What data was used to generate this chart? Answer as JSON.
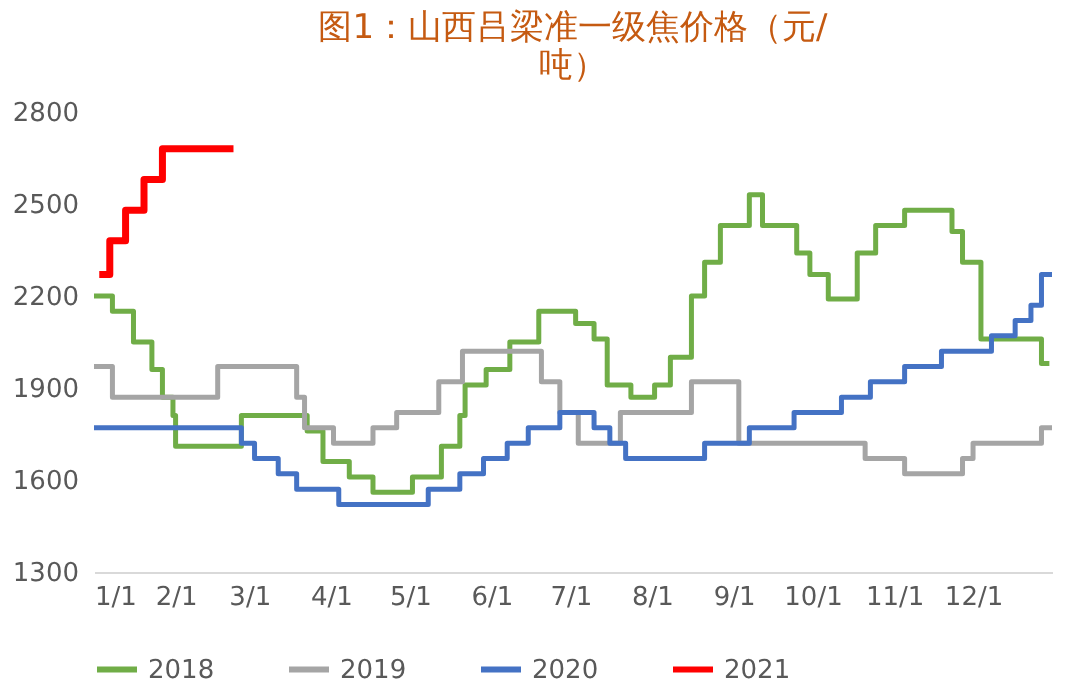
{
  "chart_data": {
    "type": "step",
    "title": "图1：山西吕梁准一级焦价格（元/吨）",
    "xlim": [
      "--01-01",
      "--12-31"
    ],
    "xticks": [
      {
        "value": "--01-01",
        "label": "1/1"
      },
      {
        "value": "--02-01",
        "label": "2/1"
      },
      {
        "value": "--03-01",
        "label": "3/1"
      },
      {
        "value": "--04-01",
        "label": "4/1"
      },
      {
        "value": "--05-01",
        "label": "5/1"
      },
      {
        "value": "--06-01",
        "label": "6/1"
      },
      {
        "value": "--07-01",
        "label": "7/1"
      },
      {
        "value": "--08-01",
        "label": "8/1"
      },
      {
        "value": "--09-01",
        "label": "9/1"
      },
      {
        "value": "--10-01",
        "label": "10/1"
      },
      {
        "value": "--11-01",
        "label": "11/1"
      },
      {
        "value": "--12-01",
        "label": "12/1"
      }
    ],
    "ylim": [
      1300,
      2800
    ],
    "yticks": [
      1300,
      1600,
      1900,
      2200,
      2500,
      2800
    ],
    "grid": false,
    "legend": "bottom",
    "series": [
      {
        "name": "2018",
        "color": "#70ad47",
        "x": [
          "--01-01",
          "--01-08",
          "--01-16",
          "--01-23",
          "--01-27",
          "--01-31",
          "--02-01",
          "--02-26",
          "--03-23",
          "--03-29",
          "--04-08",
          "--04-17",
          "--05-02",
          "--05-13",
          "--05-20",
          "--05-22",
          "--05-30",
          "--06-08",
          "--06-19",
          "--07-03",
          "--07-10",
          "--07-15",
          "--07-24",
          "--08-02",
          "--08-08",
          "--08-16",
          "--08-21",
          "--08-27",
          "--09-07",
          "--09-12",
          "--09-25",
          "--09-30",
          "--10-07",
          "--10-18",
          "--10-25",
          "--11-05",
          "--11-23",
          "--11-27",
          "--12-04",
          "--12-27",
          "--12-30"
        ],
        "values": [
          2200,
          2150,
          2050,
          1960,
          1870,
          1810,
          1710,
          1810,
          1760,
          1660,
          1610,
          1560,
          1610,
          1710,
          1810,
          1910,
          1960,
          2050,
          2150,
          2110,
          2060,
          1910,
          1870,
          1910,
          2000,
          2200,
          2310,
          2430,
          2530,
          2430,
          2340,
          2270,
          2190,
          2340,
          2430,
          2480,
          2410,
          2310,
          2060,
          1980,
          1980
        ]
      },
      {
        "name": "2019",
        "color": "#a5a5a5",
        "x": [
          "--01-01",
          "--01-08",
          "--02-17",
          "--03-19",
          "--03-22",
          "--04-02",
          "--04-17",
          "--04-26",
          "--05-12",
          "--05-21",
          "--06-20",
          "--06-27",
          "--07-04",
          "--07-20",
          "--08-16",
          "--09-03",
          "--10-21",
          "--11-05",
          "--11-27",
          "--12-01",
          "--12-27",
          "--12-31"
        ],
        "values": [
          1970,
          1870,
          1970,
          1870,
          1770,
          1720,
          1770,
          1820,
          1920,
          2020,
          1920,
          1820,
          1720,
          1820,
          1920,
          1720,
          1670,
          1620,
          1670,
          1720,
          1770,
          1770
        ]
      },
      {
        "name": "2020",
        "color": "#4472c4",
        "x": [
          "--01-01",
          "--02-26",
          "--03-03",
          "--03-12",
          "--03-19",
          "--04-04",
          "--05-08",
          "--05-20",
          "--05-29",
          "--06-07",
          "--06-15",
          "--06-27",
          "--07-10",
          "--07-16",
          "--07-22",
          "--08-21",
          "--09-07",
          "--09-24",
          "--10-12",
          "--10-23",
          "--11-05",
          "--11-19",
          "--12-08",
          "--12-17",
          "--12-23",
          "--12-27",
          "--12-31"
        ],
        "values": [
          1770,
          1720,
          1670,
          1620,
          1570,
          1520,
          1570,
          1620,
          1670,
          1720,
          1770,
          1820,
          1770,
          1720,
          1670,
          1720,
          1770,
          1820,
          1870,
          1920,
          1970,
          2020,
          2070,
          2120,
          2170,
          2270,
          2270
        ]
      },
      {
        "name": "2021",
        "color": "#ff0000",
        "x": [
          "--01-03",
          "--01-07",
          "--01-13",
          "--01-20",
          "--01-27",
          "--02-23"
        ],
        "values": [
          2270,
          2380,
          2480,
          2580,
          2680,
          2680
        ]
      }
    ]
  }
}
